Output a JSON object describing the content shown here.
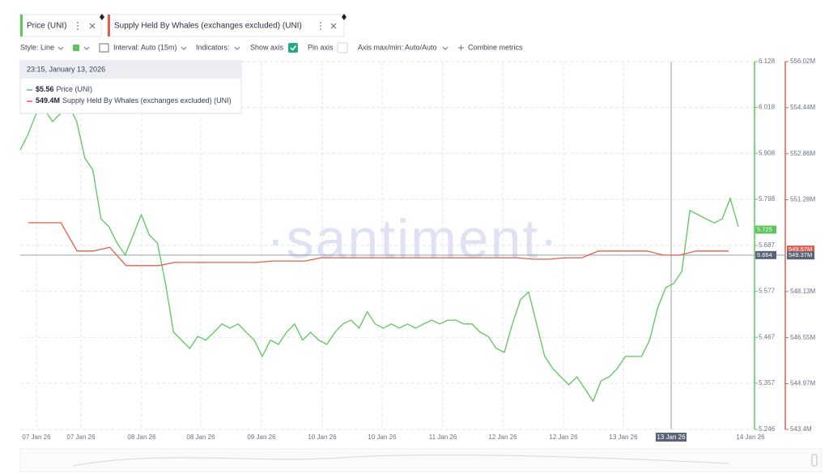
{
  "ui": {
    "toolbar": {
      "style": "Style: Line",
      "interval": "Interval: Auto (15m)",
      "indicators": "Indicators:",
      "show_axis": "Show axis",
      "pin_axis": "Pin axis",
      "axis_minmax": "Axis max/min: Auto/Auto",
      "combine": "Combine metrics"
    },
    "watermark": "·santiment·",
    "tooltip": {
      "time": "23:15, January 13, 2026",
      "items": [
        {
          "value": 5.56,
          "label": "$5.56"
        },
        {
          "value": 549.4,
          "label": "549.4M"
        }
      ]
    }
  },
  "chart_data": {
    "type": "line",
    "x_labels": [
      "07 Jan 26",
      "07 Jan 26",
      "08 Jan 26",
      "08 Jan 26",
      "09 Jan 26",
      "10 Jan 26",
      "10 Jan 26",
      "11 Jan 26",
      "12 Jan 26",
      "12 Jan 26",
      "13 Jan 26",
      "13 Jan 26",
      "14 Jan 26"
    ],
    "ylim": [
      5.246,
      6.128
    ],
    "yticks": [
      5.246,
      5.357,
      5.467,
      5.577,
      5.687,
      5.798,
      5.908,
      6.018,
      6.128
    ],
    "y2lim": [
      543.4,
      556.02
    ],
    "y2ticks": [
      {
        "value": 543.4,
        "label": "543.4M"
      },
      {
        "value": 544.97,
        "label": "544.97M"
      },
      {
        "value": 546.55,
        "label": "546.55M"
      },
      {
        "value": 548.13,
        "label": "548.13M"
      },
      {
        "value": 551.28,
        "label": "551.28M"
      },
      {
        "value": 552.86,
        "label": "552.86M"
      },
      {
        "value": 554.44,
        "label": "554.44M"
      },
      {
        "value": 556.02,
        "label": "556.02M"
      }
    ],
    "grid": true,
    "series": [
      {
        "name": "Price (UNI)",
        "color": "#5cc65c",
        "axis": "y",
        "values": [
          5.916,
          5.955,
          6.004,
          6.013,
          5.984,
          6.004,
          6.023,
          5.984,
          5.897,
          5.868,
          5.751,
          5.732,
          5.693,
          5.664,
          5.712,
          5.761,
          5.712,
          5.693,
          5.596,
          5.479,
          5.46,
          5.44,
          5.469,
          5.46,
          5.479,
          5.499,
          5.489,
          5.499,
          5.479,
          5.46,
          5.421,
          5.46,
          5.45,
          5.479,
          5.499,
          5.46,
          5.479,
          5.46,
          5.45,
          5.479,
          5.499,
          5.508,
          5.489,
          5.528,
          5.499,
          5.489,
          5.499,
          5.489,
          5.499,
          5.489,
          5.499,
          5.508,
          5.499,
          5.508,
          5.508,
          5.499,
          5.499,
          5.479,
          5.469,
          5.44,
          5.431,
          5.499,
          5.557,
          5.576,
          5.499,
          5.421,
          5.392,
          5.372,
          5.353,
          5.372,
          5.343,
          5.314,
          5.363,
          5.372,
          5.392,
          5.421,
          5.421,
          5.421,
          5.46,
          5.537,
          5.586,
          5.596,
          5.625,
          5.771,
          5.761,
          5.751,
          5.741,
          5.751,
          5.8,
          5.732
        ]
      },
      {
        "name": "Supply Held By Whales (exchanges excluded) (UNI)",
        "color": "#e0604f",
        "axis": "y2",
        "values": [
          550.49,
          550.49,
          550.49,
          549.52,
          549.52,
          549.65,
          549.02,
          549.02,
          549.02,
          549.13,
          549.13,
          549.13,
          549.13,
          549.13,
          549.13,
          549.18,
          549.18,
          549.18,
          549.29,
          549.29,
          549.29,
          549.29,
          549.29,
          549.29,
          549.29,
          549.29,
          549.29,
          549.29,
          549.29,
          549.29,
          549.29,
          549.24,
          549.24,
          549.29,
          549.29,
          549.52,
          549.52,
          549.52,
          549.52,
          549.38,
          549.38,
          549.52,
          549.52,
          549.52
        ]
      }
    ],
    "badges": [
      {
        "value": 5.725,
        "axis": "y",
        "color": "#5cc65c"
      },
      {
        "value": 5.664,
        "axis": "y",
        "color": "#5b6477"
      },
      {
        "value": {
          "value": 549.57,
          "label": "549.57M"
        },
        "axis": "y2",
        "color": "#e0604f"
      },
      {
        "value": {
          "value": 549.37,
          "label": "549.37M"
        },
        "axis": "y2",
        "color": "#5b6477"
      }
    ]
  }
}
